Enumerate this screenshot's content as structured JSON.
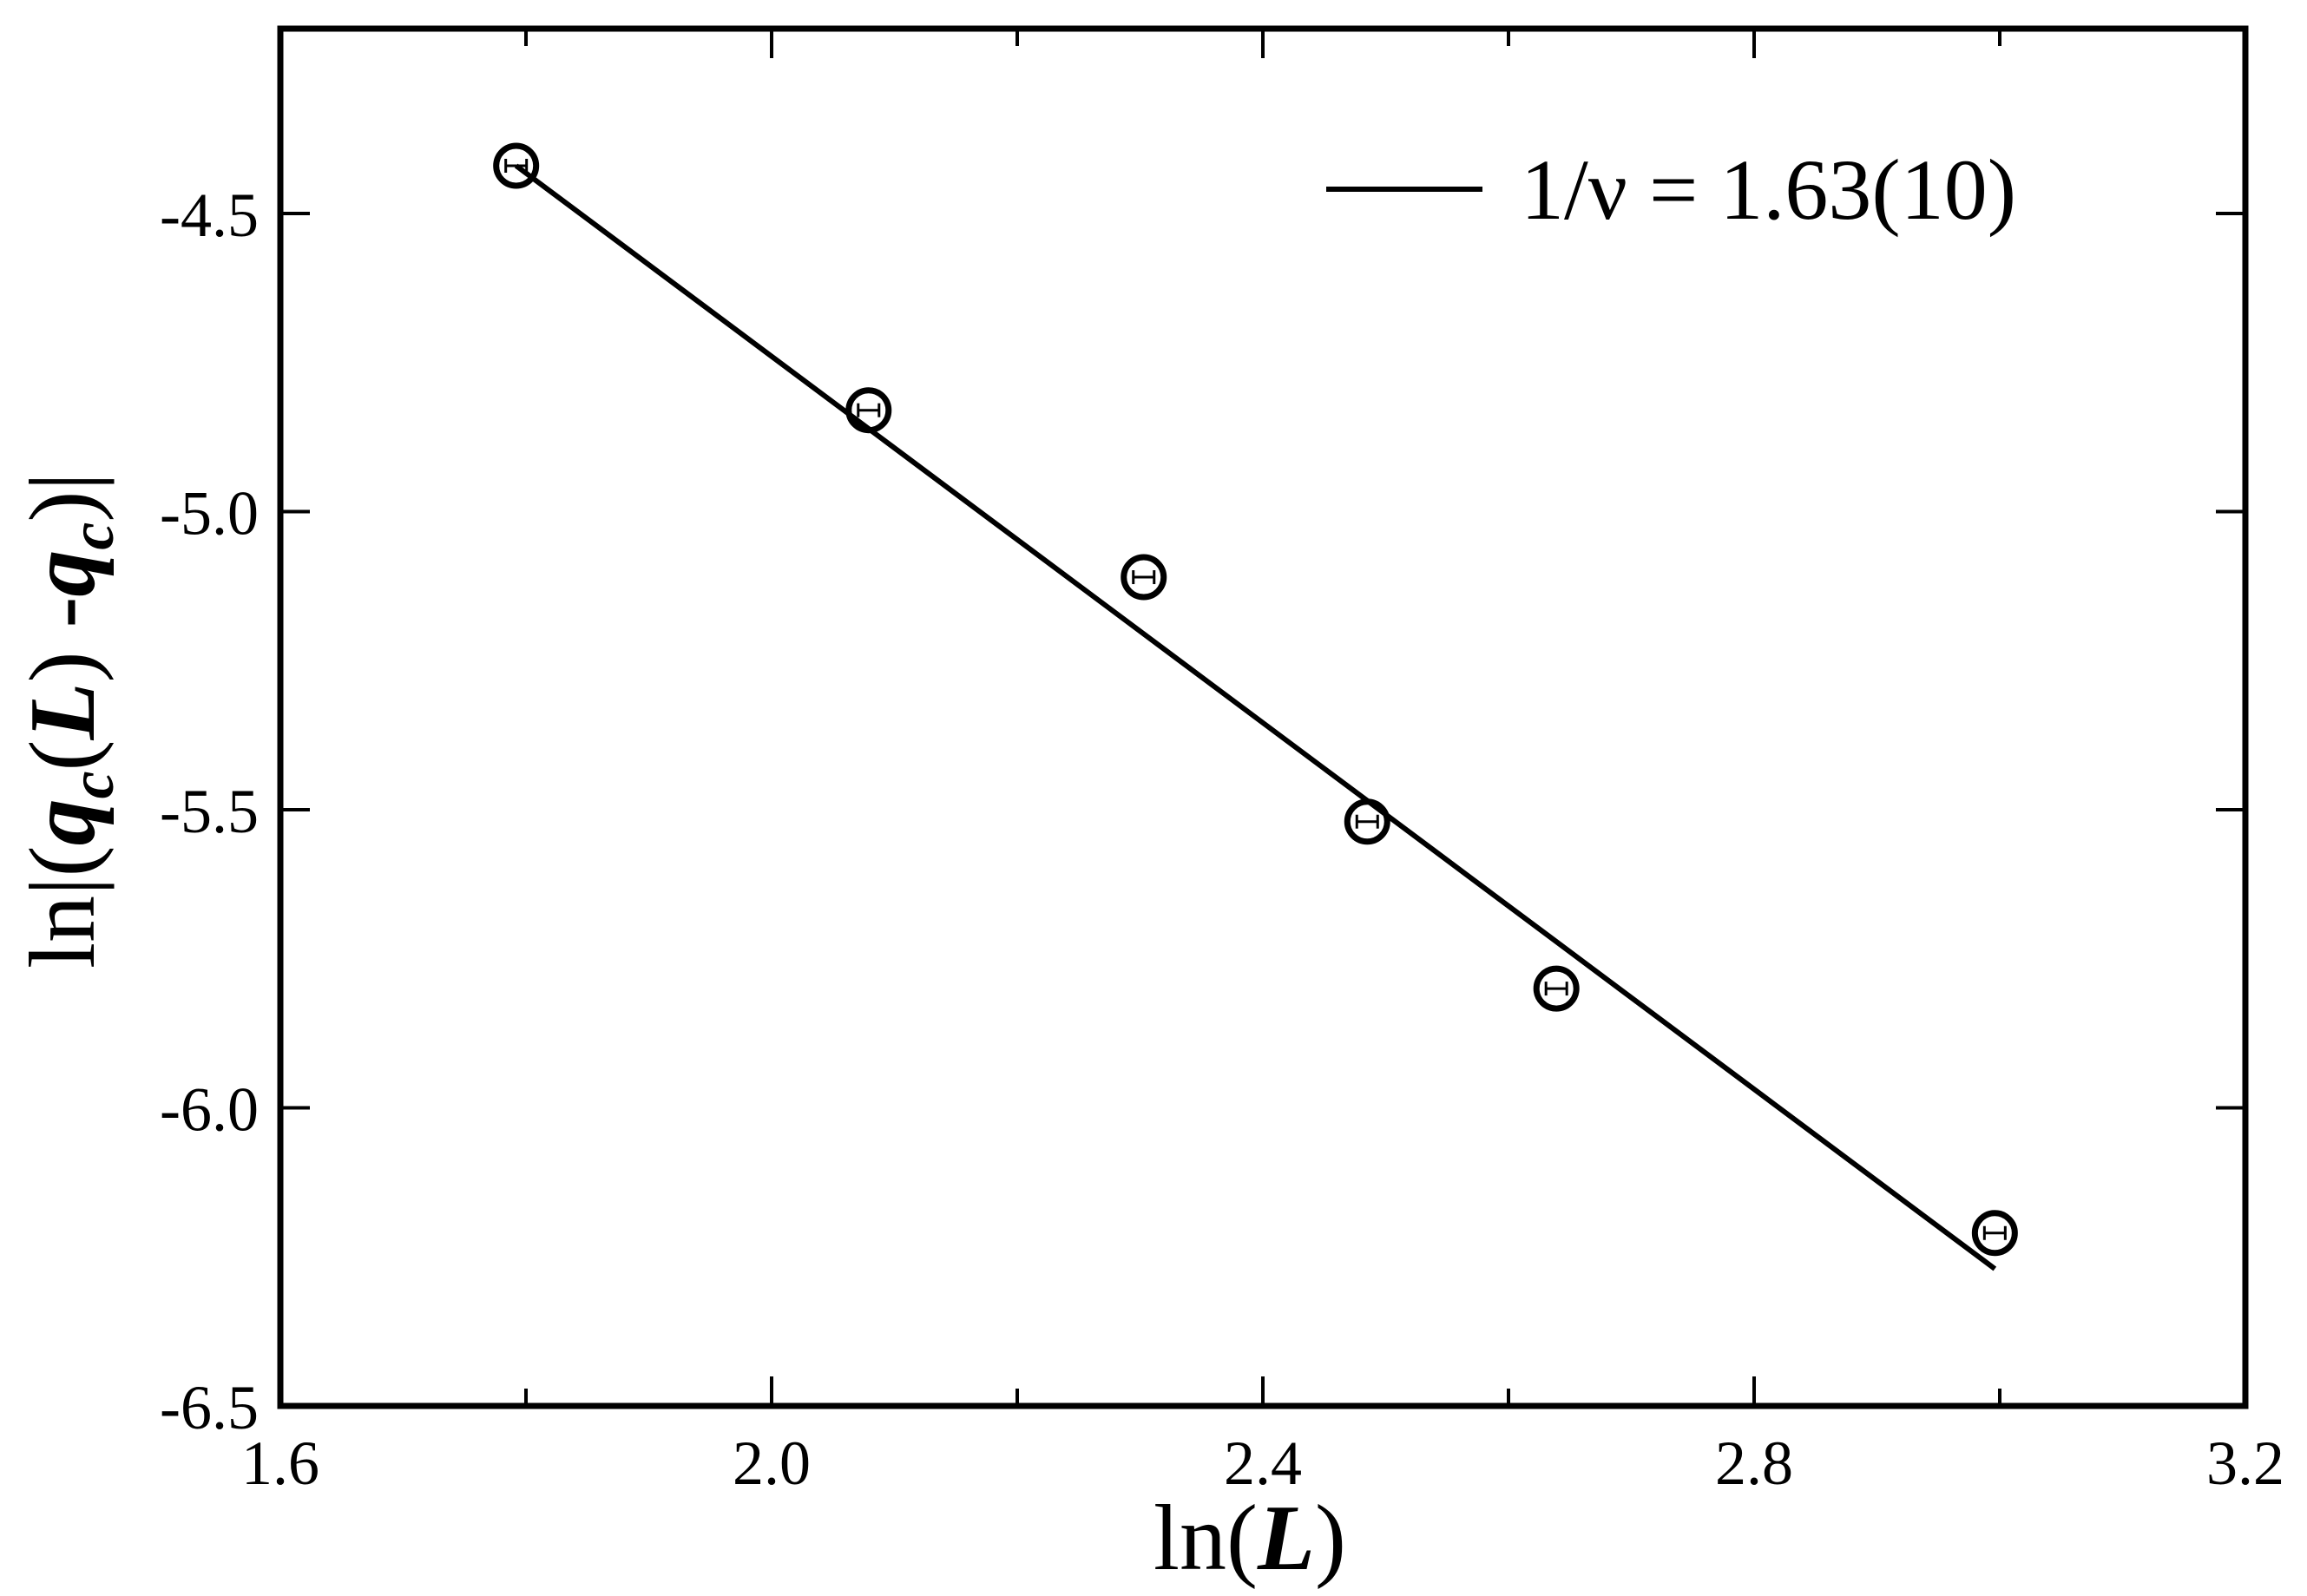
{
  "chart_data": {
    "type": "scatter",
    "title": "",
    "xlabel": "ln(L)",
    "ylabel": "ln|(q_c(L) -q_c)|",
    "xlim": [
      1.6,
      3.2
    ],
    "ylim": [
      -6.5,
      -4.2
    ],
    "x_ticks": [
      1.6,
      2.0,
      2.4,
      2.8,
      3.2
    ],
    "x_tick_labels": [
      "1.6",
      "2.0",
      "2.4",
      "2.8",
      "3.2"
    ],
    "y_ticks": [
      -4.5,
      -5.0,
      -5.5,
      -6.0,
      -6.5
    ],
    "y_tick_labels": [
      "-4.5",
      "-5.0",
      "-5.5",
      "-6.0",
      "-6.5"
    ],
    "x_minor_step": 0.2,
    "grid": false,
    "legend_position": "top-right",
    "series": [
      {
        "kind": "points",
        "marker": "open-circle",
        "x": [
          1.792,
          2.079,
          2.303,
          2.485,
          2.639,
          2.996
        ],
        "y": [
          -4.42,
          -4.83,
          -5.11,
          -5.52,
          -5.8,
          -6.21
        ]
      },
      {
        "kind": "fit-line",
        "name": "1/ν = 1.63(10)",
        "x": [
          1.792,
          2.996
        ],
        "y": [
          -4.42,
          -6.27
        ]
      }
    ]
  }
}
